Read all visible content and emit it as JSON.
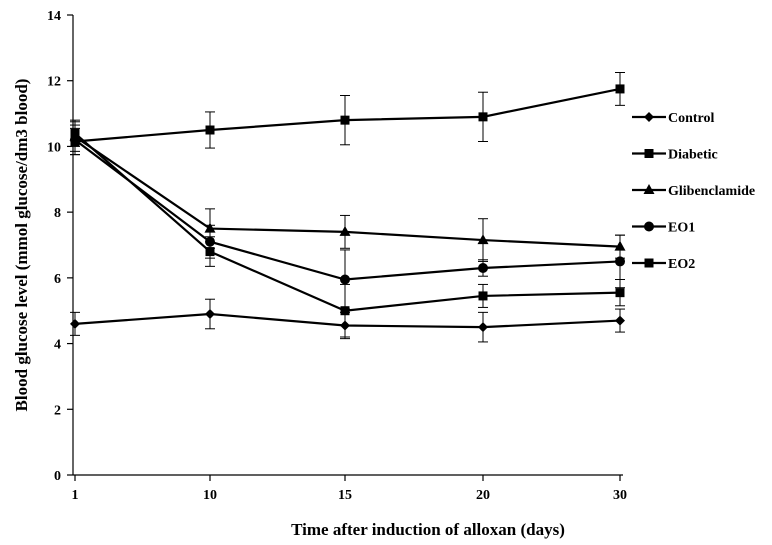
{
  "chart_data": {
    "type": "line",
    "xlabel": "Time after induction of alloxan (days)",
    "ylabel": "Blood glucose level  (mmol glucose/dm3 blood)",
    "x": [
      "1",
      "10",
      "15",
      "20",
      "30"
    ],
    "ylim": [
      0,
      14
    ],
    "yticks": [
      "0",
      "2",
      "4",
      "6",
      "8",
      "10",
      "12",
      "14"
    ],
    "grid": false,
    "legend_position": "right",
    "series": [
      {
        "name": "Control",
        "marker": "diamond",
        "values": [
          4.6,
          4.9,
          4.55,
          4.5,
          4.7
        ],
        "errors": [
          0.35,
          0.45,
          0.4,
          0.45,
          0.35
        ]
      },
      {
        "name": "Diabetic",
        "marker": "square",
        "values": [
          10.15,
          10.5,
          10.8,
          10.9,
          11.75
        ],
        "errors": [
          0.4,
          0.55,
          0.75,
          0.75,
          0.5
        ]
      },
      {
        "name": "Glibenclamide",
        "marker": "triangle",
        "values": [
          10.3,
          7.5,
          7.4,
          7.15,
          6.95
        ],
        "errors": [
          0.45,
          0.6,
          0.5,
          0.65,
          0.35
        ]
      },
      {
        "name": "EO1",
        "marker": "circle",
        "values": [
          10.2,
          7.1,
          5.95,
          6.3,
          6.5
        ],
        "errors": [
          0.45,
          0.5,
          0.9,
          0.25,
          0.8
        ]
      },
      {
        "name": "EO2",
        "marker": "square",
        "values": [
          10.4,
          6.8,
          5.0,
          5.45,
          5.55
        ],
        "errors": [
          0.4,
          0.45,
          0.8,
          0.35,
          0.4
        ]
      }
    ]
  }
}
